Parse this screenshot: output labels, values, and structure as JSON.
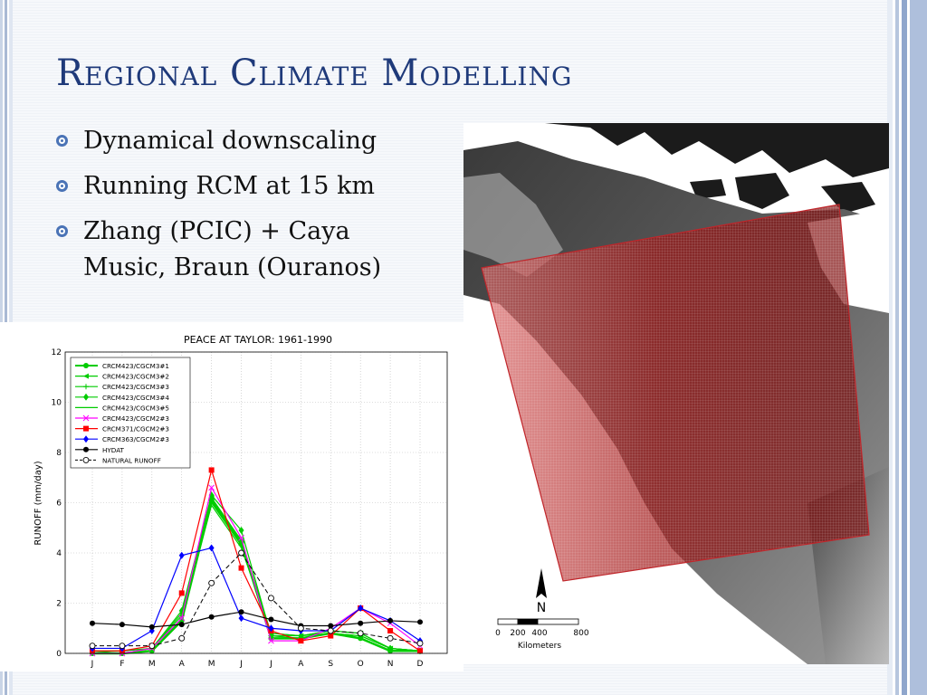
{
  "slide": {
    "title": "Regional Climate Modelling",
    "bullets": [
      {
        "text": "Dynamical downscaling"
      },
      {
        "text": "Running RCM at 15 km"
      },
      {
        "text": "Zhang (PCIC) + Caya\nMusic, Braun (Ouranos)"
      }
    ],
    "colors": {
      "title": "#1f3a7a",
      "bullet": "#4a73b6",
      "grid_overlay": "#c0262b"
    }
  },
  "map": {
    "north_label": "N",
    "scale_ticks": [
      "0",
      "200",
      "400",
      "800"
    ],
    "scale_unit": "Kilometers"
  },
  "chart_data": {
    "type": "line",
    "title": "PEACE AT TAYLOR: 1961-1990",
    "xlabel": "",
    "ylabel": "RUNOFF (mm/day)",
    "categories": [
      "J",
      "F",
      "M",
      "A",
      "M",
      "J",
      "J",
      "A",
      "S",
      "O",
      "N",
      "D"
    ],
    "ylim": [
      0,
      12
    ],
    "yticks": [
      0,
      2,
      4,
      6,
      8,
      10,
      12
    ],
    "grid": true,
    "legend_position": "top-left",
    "series": [
      {
        "name": "CRCM423/CGCM3#1",
        "color": "#00cc00",
        "marker": "circle",
        "dash": "",
        "width": 2.5,
        "values": [
          0.0,
          0.0,
          0.1,
          1.3,
          6.1,
          4.4,
          0.6,
          0.6,
          0.8,
          0.6,
          0.1,
          0.1
        ]
      },
      {
        "name": "CRCM423/CGCM3#2",
        "color": "#00cc00",
        "marker": "tri",
        "dash": "",
        "width": 1.2,
        "values": [
          0.1,
          0.1,
          0.2,
          1.6,
          6.2,
          4.5,
          0.8,
          0.7,
          0.9,
          0.8,
          0.2,
          0.1
        ]
      },
      {
        "name": "CRCM423/CGCM3#3",
        "color": "#00cc00",
        "marker": "plus",
        "dash": "",
        "width": 1.2,
        "values": [
          0.1,
          0.0,
          0.2,
          1.5,
          6.0,
          4.3,
          0.7,
          0.6,
          0.8,
          0.7,
          0.2,
          0.1
        ]
      },
      {
        "name": "CRCM423/CGCM3#4",
        "color": "#00cc00",
        "marker": "diamond",
        "dash": "",
        "width": 1.2,
        "values": [
          0.1,
          0.1,
          0.2,
          1.7,
          6.3,
          4.9,
          0.7,
          0.7,
          0.9,
          0.8,
          0.2,
          0.1
        ]
      },
      {
        "name": "CRCM423/CGCM3#5",
        "color": "#00cc00",
        "marker": "none",
        "dash": "",
        "width": 1.2,
        "values": [
          0.0,
          0.0,
          0.1,
          1.4,
          5.9,
          4.2,
          0.8,
          0.7,
          0.8,
          0.7,
          0.2,
          0.1
        ]
      },
      {
        "name": "CRCM423/CGCM2#3",
        "color": "#ff00ff",
        "marker": "x",
        "dash": "",
        "width": 1.2,
        "values": [
          0.0,
          0.0,
          0.2,
          1.4,
          6.6,
          4.6,
          0.5,
          0.5,
          1.0,
          1.8,
          1.2,
          0.3
        ]
      },
      {
        "name": "CRCM371/CGCM2#3",
        "color": "#ff0000",
        "marker": "square",
        "dash": "",
        "width": 1.2,
        "values": [
          0.1,
          0.1,
          0.3,
          2.4,
          7.3,
          3.4,
          0.9,
          0.5,
          0.7,
          1.8,
          0.9,
          0.1
        ]
      },
      {
        "name": "CRCM363/CGCM2#3",
        "color": "#0000ff",
        "marker": "diamond",
        "dash": "",
        "width": 1.2,
        "values": [
          0.2,
          0.2,
          0.9,
          3.9,
          4.2,
          1.4,
          1.0,
          0.9,
          0.9,
          1.8,
          1.3,
          0.5
        ]
      },
      {
        "name": "HYDAT",
        "color": "#000000",
        "marker": "circle",
        "dash": "",
        "width": 1.2,
        "values": [
          1.2,
          1.15,
          1.05,
          1.15,
          1.45,
          1.65,
          1.35,
          1.1,
          1.1,
          1.2,
          1.3,
          1.25
        ]
      },
      {
        "name": "NATURAL RUNOFF",
        "color": "#000000",
        "marker": "opencircle",
        "dash": "5,3",
        "width": 1.0,
        "values": [
          0.3,
          0.3,
          0.3,
          0.6,
          2.8,
          4.0,
          2.2,
          1.0,
          0.9,
          0.8,
          0.6,
          0.4
        ]
      }
    ]
  }
}
